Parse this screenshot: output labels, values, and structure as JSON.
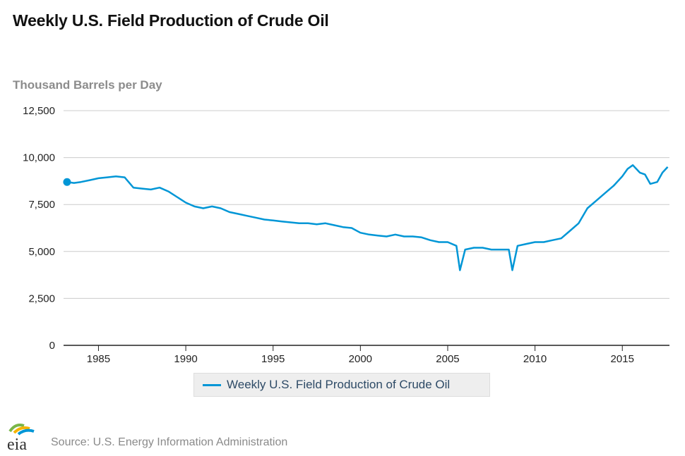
{
  "title": "Weekly U.S. Field Production of Crude Oil",
  "footer": {
    "logo_text": "eia",
    "source": "Source: U.S. Energy Information Administration"
  },
  "colors": {
    "series": "#0096d6",
    "grid": "#cccccc",
    "axis": "#222222"
  },
  "chart_data": {
    "type": "line",
    "ylabel": "Thousand Barrels per Day",
    "xlabel": "",
    "ylim": [
      0,
      12500
    ],
    "xlim": [
      1983,
      2017.7
    ],
    "y_ticks": [
      0,
      2500,
      5000,
      7500,
      10000,
      12500
    ],
    "y_tick_labels": [
      "0",
      "2,500",
      "5,000",
      "7,500",
      "10,000",
      "12,500"
    ],
    "x_ticks": [
      1985,
      1990,
      1995,
      2000,
      2005,
      2010,
      2015
    ],
    "x_tick_labels": [
      "1985",
      "1990",
      "1995",
      "2000",
      "2005",
      "2010",
      "2015"
    ],
    "grid": true,
    "legend": "bottom-center",
    "series": [
      {
        "name": "Weekly U.S. Field Production of Crude Oil",
        "x": [
          1983.2,
          1983.6,
          1984.0,
          1984.5,
          1985.0,
          1985.5,
          1986.0,
          1986.5,
          1987.0,
          1987.5,
          1988.0,
          1988.5,
          1989.0,
          1989.5,
          1990.0,
          1990.5,
          1991.0,
          1991.5,
          1992.0,
          1992.5,
          1993.0,
          1993.5,
          1994.0,
          1994.5,
          1995.0,
          1995.5,
          1996.0,
          1996.5,
          1997.0,
          1997.5,
          1998.0,
          1998.5,
          1999.0,
          1999.5,
          2000.0,
          2000.5,
          2001.0,
          2001.5,
          2002.0,
          2002.5,
          2003.0,
          2003.5,
          2004.0,
          2004.5,
          2005.0,
          2005.5,
          2005.7,
          2006.0,
          2006.5,
          2007.0,
          2007.5,
          2008.0,
          2008.5,
          2008.7,
          2009.0,
          2009.5,
          2010.0,
          2010.5,
          2011.0,
          2011.5,
          2012.0,
          2012.5,
          2013.0,
          2013.5,
          2014.0,
          2014.5,
          2015.0,
          2015.3,
          2015.6,
          2016.0,
          2016.3,
          2016.6,
          2017.0,
          2017.3,
          2017.6
        ],
        "values": [
          8700,
          8650,
          8700,
          8800,
          8900,
          8950,
          9000,
          8950,
          8400,
          8350,
          8300,
          8400,
          8200,
          7900,
          7600,
          7400,
          7300,
          7400,
          7300,
          7100,
          7000,
          6900,
          6800,
          6700,
          6650,
          6600,
          6550,
          6500,
          6500,
          6450,
          6500,
          6400,
          6300,
          6250,
          6000,
          5900,
          5850,
          5800,
          5900,
          5800,
          5800,
          5750,
          5600,
          5500,
          5500,
          5300,
          4000,
          5100,
          5200,
          5200,
          5100,
          5100,
          5100,
          4000,
          5300,
          5400,
          5500,
          5500,
          5600,
          5700,
          6100,
          6500,
          7300,
          7700,
          8100,
          8500,
          9000,
          9400,
          9600,
          9200,
          9100,
          8600,
          8700,
          9200,
          9500
        ]
      }
    ]
  }
}
